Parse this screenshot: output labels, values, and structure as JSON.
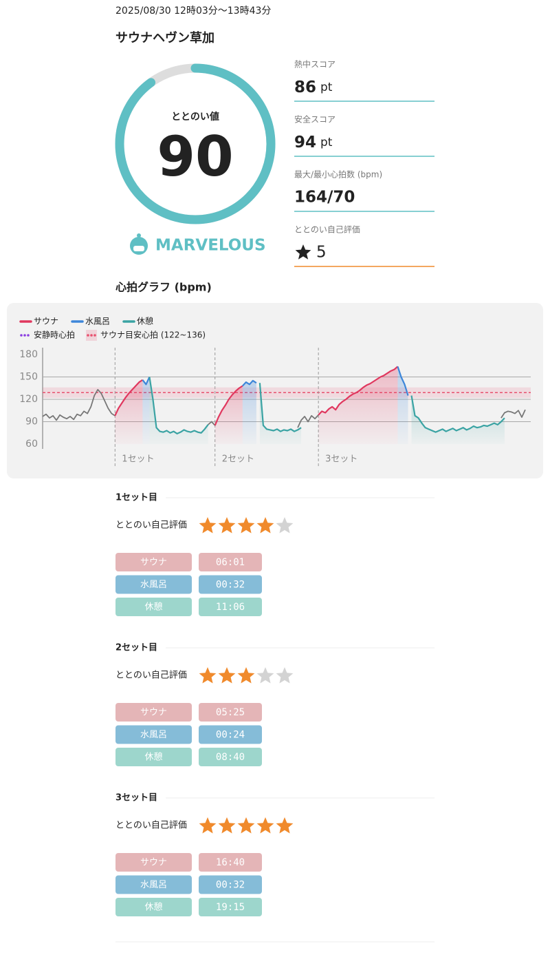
{
  "header": {
    "date": "2025/08/30 12時03分〜13時43分",
    "facility": "サウナヘヴン草加"
  },
  "score": {
    "label": "ととのい値",
    "value": 90,
    "range": [
      0,
      100
    ],
    "color": "#5fbfc4",
    "rank": "MARVELOUS"
  },
  "stats": [
    {
      "label": "熱中スコア",
      "value": 86,
      "unit": "pt",
      "line_color": "#5fbfc4"
    },
    {
      "label": "安全スコア",
      "value": 94,
      "unit": "pt",
      "line_color": "#5fbfc4"
    },
    {
      "label": "最大/最小心拍数 (bpm)",
      "value": "164/70",
      "line_color": "#5fbfc4"
    },
    {
      "label": "ととのい自己評価",
      "value": 5,
      "line_color": "#f08a2c"
    }
  ],
  "chart_data": {
    "type": "line",
    "title": "心拍グラフ (bpm)",
    "ylim": [
      60,
      180
    ],
    "yticks": [
      60,
      90,
      120,
      150,
      180
    ],
    "grid": true,
    "series": [
      {
        "color": "#777777",
        "fill_area": false,
        "values": [
          97,
          100,
          95,
          98,
          92,
          99,
          96,
          94,
          97,
          93,
          100,
          98,
          104,
          101,
          110,
          125,
          133,
          128,
          118,
          108,
          101,
          98,
          null,
          null,
          null,
          null,
          null,
          null,
          null,
          null,
          null,
          null,
          null,
          null,
          null,
          null,
          null,
          null,
          null,
          null,
          null,
          null,
          null,
          null,
          null,
          null,
          null,
          null,
          86,
          90,
          85,
          null,
          null,
          null,
          null,
          null,
          null,
          null,
          null,
          null,
          null,
          null,
          null,
          null,
          null,
          null,
          null,
          null,
          null,
          null,
          null,
          null,
          null,
          null,
          82,
          92,
          97,
          90,
          98,
          94,
          99,
          null,
          null,
          null,
          null,
          null,
          null,
          null,
          null,
          null,
          null,
          null,
          null,
          null,
          null,
          null,
          null,
          null,
          null,
          null,
          null,
          null,
          null,
          null,
          null,
          null,
          null,
          null,
          null,
          null,
          null,
          null,
          null,
          null,
          null,
          null,
          null,
          null,
          null,
          null,
          null,
          null,
          null,
          null,
          null,
          null,
          null,
          null,
          null,
          null,
          null,
          null,
          null,
          95,
          102,
          104,
          103,
          101,
          105,
          96,
          106
        ]
      },
      {
        "name": "サウナ",
        "color": "#e0375e",
        "fill_area": true,
        "values": [
          null,
          null,
          null,
          null,
          null,
          null,
          null,
          null,
          null,
          null,
          null,
          null,
          null,
          null,
          null,
          null,
          null,
          null,
          null,
          null,
          null,
          98,
          108,
          115,
          122,
          128,
          133,
          138,
          143,
          146,
          null,
          null,
          null,
          null,
          null,
          null,
          null,
          null,
          null,
          null,
          null,
          null,
          null,
          null,
          null,
          null,
          null,
          null,
          null,
          null,
          85,
          96,
          105,
          112,
          120,
          126,
          131,
          135,
          138,
          null,
          null,
          null,
          null,
          null,
          null,
          null,
          null,
          null,
          null,
          null,
          null,
          null,
          null,
          null,
          null,
          null,
          null,
          null,
          null,
          null,
          99,
          104,
          102,
          107,
          110,
          106,
          113,
          117,
          120,
          124,
          127,
          129,
          132,
          136,
          139,
          141,
          144,
          147,
          150,
          152,
          155,
          158,
          160,
          164,
          null,
          null,
          null,
          null,
          null,
          null,
          null,
          null,
          null,
          null,
          null,
          null,
          null,
          null,
          null,
          null,
          null,
          null,
          null,
          null,
          null,
          null,
          null,
          null,
          null,
          null,
          null,
          null,
          null,
          null,
          null,
          null,
          null
        ]
      },
      {
        "name": "水風呂",
        "color": "#3d86d9",
        "fill_area": true,
        "values": [
          null,
          null,
          null,
          null,
          null,
          null,
          null,
          null,
          null,
          null,
          null,
          null,
          null,
          null,
          null,
          null,
          null,
          null,
          null,
          null,
          null,
          null,
          null,
          null,
          null,
          null,
          null,
          null,
          null,
          146,
          140,
          150,
          null,
          null,
          null,
          null,
          null,
          null,
          null,
          null,
          null,
          null,
          null,
          null,
          null,
          null,
          null,
          null,
          null,
          null,
          null,
          null,
          null,
          null,
          null,
          null,
          null,
          null,
          138,
          143,
          140,
          145,
          142,
          null,
          null,
          null,
          null,
          null,
          null,
          null,
          null,
          null,
          null,
          null,
          null,
          null,
          null,
          null,
          null,
          null,
          null,
          null,
          null,
          null,
          null,
          null,
          null,
          null,
          null,
          null,
          null,
          null,
          null,
          null,
          null,
          null,
          null,
          null,
          null,
          null,
          null,
          null,
          null,
          164,
          150,
          140,
          125,
          null,
          null,
          null,
          null,
          null,
          null,
          null,
          null,
          null,
          null,
          null,
          null,
          null,
          null,
          null,
          null,
          null,
          null,
          null,
          null,
          null,
          null,
          null,
          null,
          null,
          null,
          null,
          null,
          null,
          null
        ]
      },
      {
        "name": "休憩",
        "color": "#3aa3a3",
        "fill_area": true,
        "values": [
          null,
          null,
          null,
          null,
          null,
          null,
          null,
          null,
          null,
          null,
          null,
          null,
          null,
          null,
          null,
          null,
          null,
          null,
          null,
          null,
          null,
          null,
          null,
          null,
          null,
          null,
          null,
          null,
          null,
          null,
          null,
          150,
          120,
          82,
          77,
          76,
          78,
          75,
          77,
          74,
          76,
          79,
          77,
          76,
          78,
          76,
          75,
          80,
          86,
          null,
          null,
          null,
          null,
          null,
          null,
          null,
          null,
          null,
          null,
          null,
          null,
          null,
          null,
          142,
          85,
          80,
          79,
          78,
          80,
          77,
          79,
          78,
          80,
          77,
          79,
          82,
          null,
          null,
          null,
          null,
          null,
          null,
          null,
          null,
          null,
          null,
          null,
          null,
          null,
          null,
          null,
          null,
          null,
          null,
          null,
          null,
          null,
          null,
          null,
          null,
          null,
          null,
          null,
          null,
          null,
          null,
          null,
          125,
          98,
          95,
          88,
          82,
          80,
          78,
          76,
          78,
          80,
          77,
          79,
          81,
          78,
          80,
          82,
          79,
          81,
          84,
          82,
          83,
          85,
          84,
          86,
          88,
          86,
          90,
          95,
          null,
          null,
          null,
          null,
          null,
          null,
          null
        ]
      }
    ],
    "resting": {
      "name": "安静時心拍",
      "color": "#8b3fe0"
    },
    "target": {
      "name": "サウナ目安心拍 (122~136)",
      "range": [
        122,
        136
      ],
      "color": "#e8506e"
    },
    "set_markers": [
      {
        "label": "1セット",
        "x": 21
      },
      {
        "label": "2セット",
        "x": 50
      },
      {
        "label": "3セット",
        "x": 80
      }
    ]
  },
  "sets": [
    {
      "title": "1セット目",
      "rating_label": "ととのい自己評価",
      "rating": 4,
      "rating_range": [
        0,
        5
      ],
      "phases": [
        {
          "label": "サウナ",
          "time": "06:01",
          "color": "#e4b5b7"
        },
        {
          "label": "水風呂",
          "time": "00:32",
          "color": "#85bcd8"
        },
        {
          "label": "休憩",
          "time": "11:06",
          "color": "#9dd6cc"
        }
      ]
    },
    {
      "title": "2セット目",
      "rating_label": "ととのい自己評価",
      "rating": 3,
      "rating_range": [
        0,
        5
      ],
      "phases": [
        {
          "label": "サウナ",
          "time": "05:25",
          "color": "#e4b5b7"
        },
        {
          "label": "水風呂",
          "time": "00:24",
          "color": "#85bcd8"
        },
        {
          "label": "休憩",
          "time": "08:40",
          "color": "#9dd6cc"
        }
      ]
    },
    {
      "title": "3セット目",
      "rating_label": "ととのい自己評価",
      "rating": 5,
      "rating_range": [
        0,
        5
      ],
      "phases": [
        {
          "label": "サウナ",
          "time": "16:40",
          "color": "#e4b5b7"
        },
        {
          "label": "水風呂",
          "time": "00:32",
          "color": "#85bcd8"
        },
        {
          "label": "休憩",
          "time": "19:15",
          "color": "#9dd6cc"
        }
      ]
    }
  ]
}
